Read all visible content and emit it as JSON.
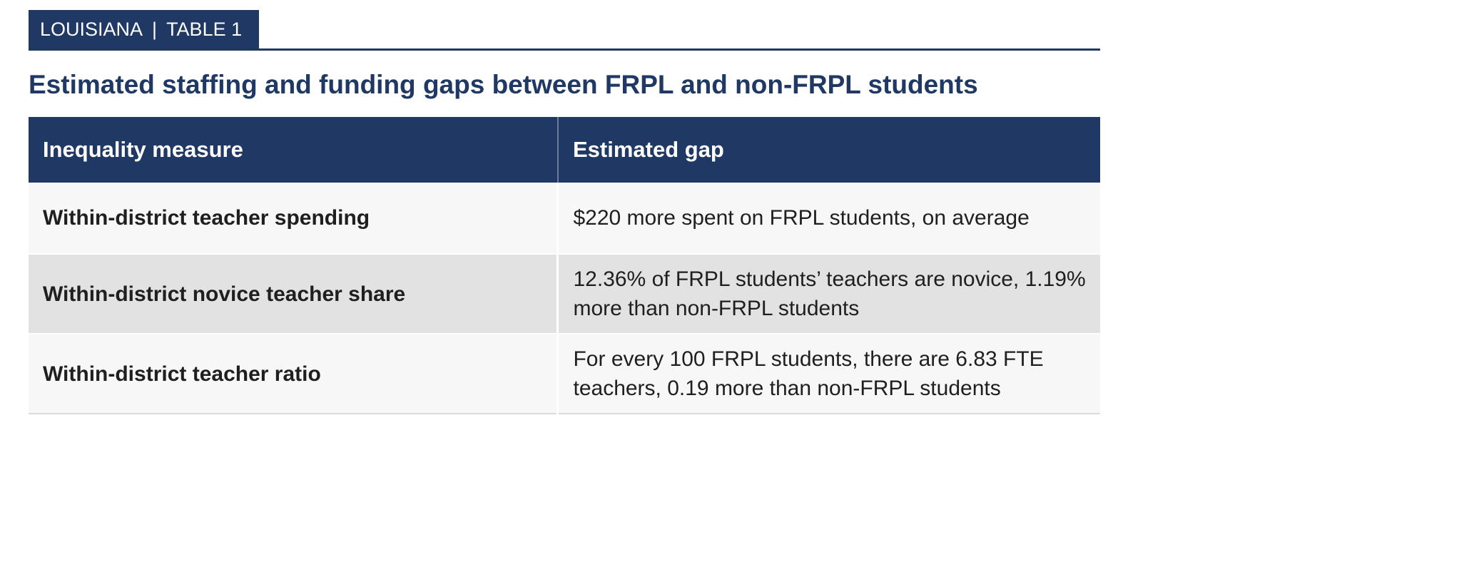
{
  "badge": {
    "state": "LOUISIANA",
    "separator": "|",
    "table_label": "TABLE 1"
  },
  "title": "Estimated staffing and funding gaps between FRPL and non-FRPL students",
  "table": {
    "headers": [
      "Inequality measure",
      "Estimated gap"
    ],
    "rows": [
      {
        "measure": "Within-district teacher spending",
        "gap": "$220 more spent on FRPL students, on average"
      },
      {
        "measure": "Within-district novice teacher share",
        "gap": "12.36% of FRPL students’ teachers are novice, 1.19% more than non-FRPL students"
      },
      {
        "measure": "Within-district teacher ratio",
        "gap": "For every 100 FRPL students, there are 6.83 FTE teachers, 0.19 more than non-FRPL students"
      }
    ]
  },
  "colors": {
    "accent_navy": "#1F3864",
    "header_text": "#FFFFFF",
    "row_light": "#F7F7F7",
    "row_shaded": "#E2E2E2",
    "body_text": "#1F1F1F"
  }
}
